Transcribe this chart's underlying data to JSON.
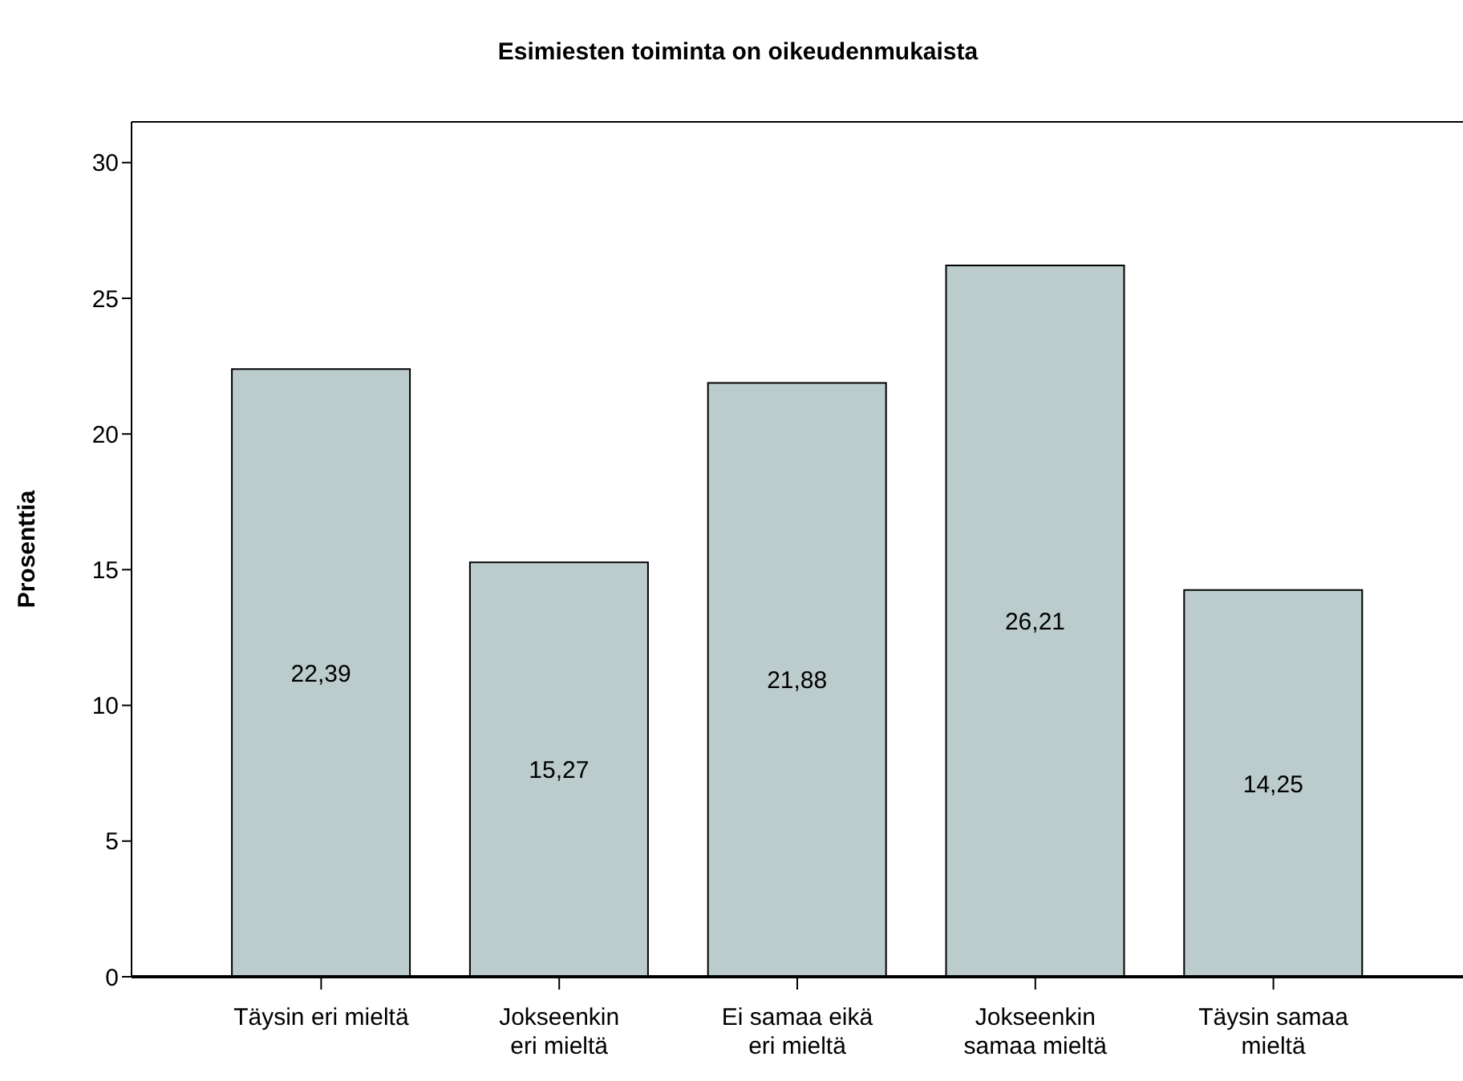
{
  "chart_data": {
    "type": "bar",
    "title": "Esimiesten toiminta on oikeudenmukaista",
    "ylabel": "Prosenttia",
    "categories": [
      "Täysin eri mieltä",
      "Jokseenkin\neri mieltä",
      "Ei samaa eikä\neri mieltä",
      "Jokseenkin\nsamaa mieltä",
      "Täysin samaa\nmieltä"
    ],
    "values": [
      22.39,
      15.27,
      21.88,
      26.21,
      14.25
    ],
    "value_labels": [
      "22,39",
      "15,27",
      "21,88",
      "26,21",
      "14,25"
    ],
    "color": "#bccccc",
    "ylim": [
      0,
      31.5
    ],
    "yticks": [
      0,
      5,
      10,
      15,
      20,
      25,
      30
    ],
    "grid": false
  }
}
